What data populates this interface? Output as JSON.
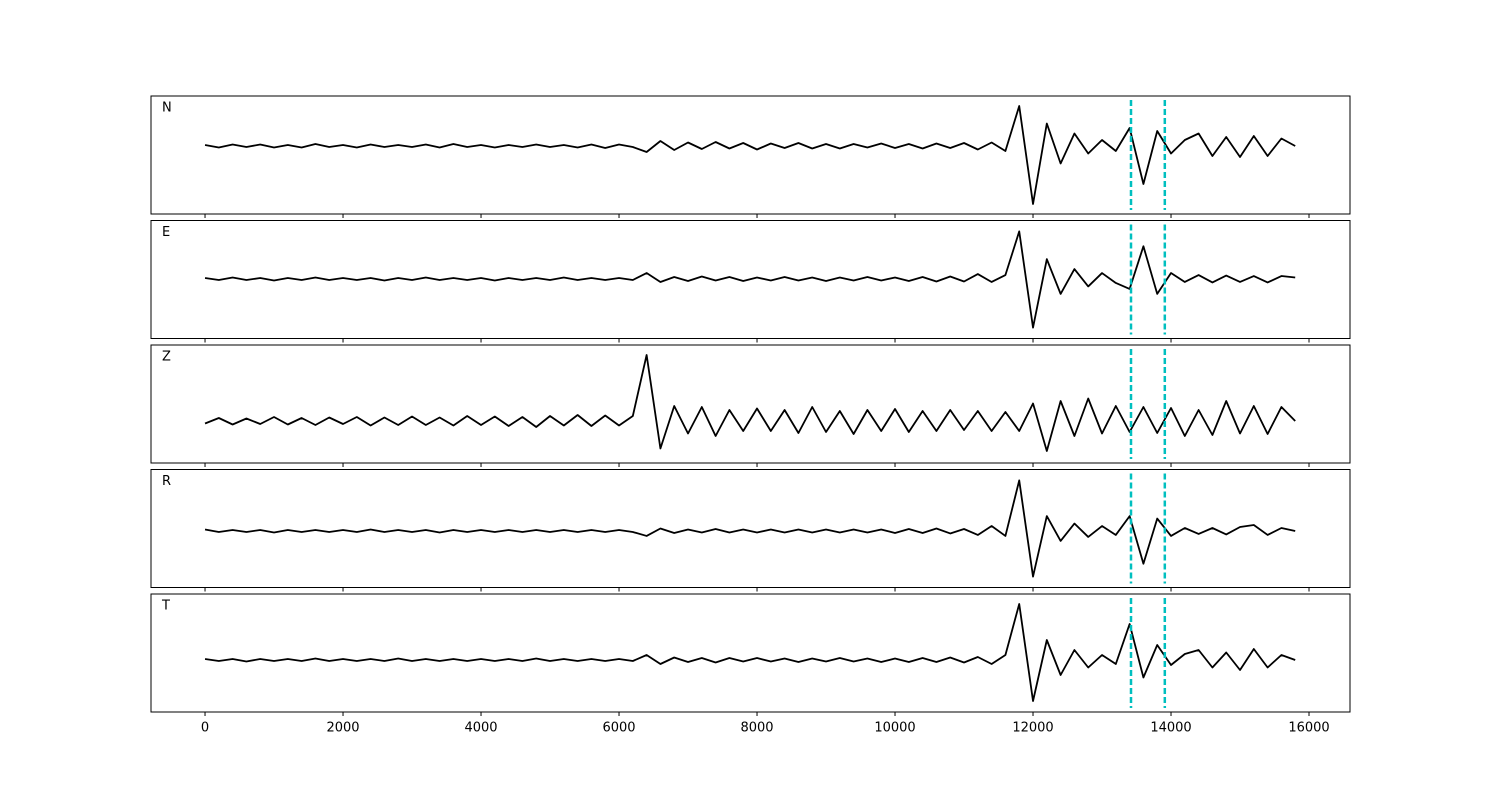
{
  "chart_data": {
    "type": "line",
    "subplots": true,
    "x": [
      0,
      200,
      400,
      600,
      800,
      1000,
      1200,
      1400,
      1600,
      1800,
      2000,
      2200,
      2400,
      2600,
      2800,
      3000,
      3200,
      3400,
      3600,
      3800,
      4000,
      4200,
      4400,
      4600,
      4800,
      5000,
      5200,
      5400,
      5600,
      5800,
      6000,
      6200,
      6400,
      6600,
      6800,
      7000,
      7200,
      7400,
      7600,
      7800,
      8000,
      8200,
      8400,
      8600,
      8800,
      9000,
      9200,
      9400,
      9600,
      9800,
      10000,
      10200,
      10400,
      10600,
      10800,
      11000,
      11200,
      11400,
      11600,
      11800,
      12000,
      12200,
      12400,
      12600,
      12800,
      13000,
      13200,
      13400,
      13600,
      13800,
      14000,
      14200,
      14400,
      14600,
      14800,
      15000,
      15200,
      15400,
      15600,
      15800
    ],
    "xlim": [
      -783,
      16594
    ],
    "xticks": [
      0,
      2000,
      4000,
      6000,
      8000,
      10000,
      12000,
      14000,
      16000
    ],
    "series": [
      {
        "name": "N",
        "color": "#000000",
        "ylim": [
          -1.36,
          1.0
        ],
        "values": [
          0.02,
          -0.03,
          0.03,
          -0.02,
          0.03,
          -0.03,
          0.02,
          -0.03,
          0.04,
          -0.02,
          0.02,
          -0.03,
          0.03,
          -0.02,
          0.02,
          -0.02,
          0.03,
          -0.03,
          0.04,
          -0.02,
          0.02,
          -0.03,
          0.02,
          -0.02,
          0.03,
          -0.02,
          0.02,
          -0.03,
          0.03,
          -0.04,
          0.03,
          -0.02,
          -0.12,
          0.1,
          -0.08,
          0.07,
          -0.06,
          0.08,
          -0.05,
          0.06,
          -0.07,
          0.05,
          -0.04,
          0.06,
          -0.05,
          0.04,
          -0.05,
          0.04,
          -0.03,
          0.05,
          -0.04,
          0.04,
          -0.05,
          0.05,
          -0.04,
          0.06,
          -0.07,
          0.07,
          -0.1,
          0.8,
          -1.16,
          0.45,
          -0.35,
          0.25,
          -0.15,
          0.12,
          -0.1,
          0.36,
          -0.76,
          0.3,
          -0.15,
          0.12,
          0.25,
          -0.2,
          0.18,
          -0.22,
          0.2,
          -0.2,
          0.15,
          0.0
        ]
      },
      {
        "name": "E",
        "color": "#000000",
        "ylim": [
          -1.2,
          1.18
        ],
        "values": [
          0.02,
          -0.02,
          0.03,
          -0.02,
          0.02,
          -0.03,
          0.02,
          -0.02,
          0.03,
          -0.02,
          0.02,
          -0.02,
          0.02,
          -0.03,
          0.02,
          -0.02,
          0.03,
          -0.02,
          0.02,
          -0.02,
          0.02,
          -0.03,
          0.02,
          -0.02,
          0.02,
          -0.02,
          0.03,
          -0.02,
          0.02,
          -0.02,
          0.02,
          -0.02,
          0.12,
          -0.06,
          0.04,
          -0.04,
          0.05,
          -0.03,
          0.04,
          -0.04,
          0.03,
          -0.03,
          0.04,
          -0.03,
          0.03,
          -0.04,
          0.03,
          -0.03,
          0.04,
          -0.03,
          0.03,
          -0.04,
          0.04,
          -0.05,
          0.05,
          -0.05,
          0.1,
          -0.06,
          0.08,
          0.96,
          -0.98,
          0.4,
          -0.3,
          0.2,
          -0.15,
          0.12,
          -0.08,
          -0.2,
          0.66,
          -0.3,
          0.12,
          -0.06,
          0.08,
          -0.07,
          0.07,
          -0.06,
          0.06,
          -0.07,
          0.06,
          0.03
        ]
      },
      {
        "name": "Z",
        "color": "#000000",
        "ylim": [
          -0.84,
          1.52
        ],
        "values": [
          -0.05,
          0.06,
          -0.07,
          0.05,
          -0.06,
          0.08,
          -0.07,
          0.06,
          -0.08,
          0.07,
          -0.06,
          0.08,
          -0.09,
          0.07,
          -0.08,
          0.09,
          -0.08,
          0.07,
          -0.09,
          0.1,
          -0.08,
          0.09,
          -0.1,
          0.08,
          -0.12,
          0.1,
          -0.09,
          0.12,
          -0.1,
          0.11,
          -0.09,
          0.1,
          1.32,
          -0.55,
          0.3,
          -0.25,
          0.28,
          -0.3,
          0.22,
          -0.2,
          0.25,
          -0.2,
          0.22,
          -0.24,
          0.28,
          -0.22,
          0.2,
          -0.26,
          0.22,
          -0.2,
          0.24,
          -0.22,
          0.2,
          -0.2,
          0.22,
          -0.18,
          0.2,
          -0.2,
          0.18,
          -0.2,
          0.35,
          -0.6,
          0.4,
          -0.3,
          0.45,
          -0.25,
          0.3,
          -0.22,
          0.28,
          -0.24,
          0.26,
          -0.3,
          0.22,
          -0.28,
          0.4,
          -0.25,
          0.3,
          -0.26,
          0.28,
          0.0
        ]
      },
      {
        "name": "R",
        "color": "#000000",
        "ylim": [
          -1.14,
          1.24
        ],
        "values": [
          0.03,
          -0.02,
          0.02,
          -0.02,
          0.02,
          -0.03,
          0.02,
          -0.02,
          0.02,
          -0.02,
          0.02,
          -0.02,
          0.03,
          -0.02,
          0.02,
          -0.02,
          0.02,
          -0.03,
          0.02,
          -0.02,
          0.02,
          -0.02,
          0.02,
          -0.02,
          0.02,
          -0.02,
          0.02,
          -0.02,
          0.02,
          -0.02,
          0.02,
          -0.02,
          -0.1,
          0.05,
          -0.04,
          0.03,
          -0.03,
          0.04,
          -0.03,
          0.03,
          -0.03,
          0.03,
          -0.03,
          0.03,
          -0.03,
          0.03,
          -0.03,
          0.03,
          -0.03,
          0.03,
          -0.04,
          0.04,
          -0.04,
          0.05,
          -0.05,
          0.04,
          -0.08,
          0.1,
          -0.1,
          1.02,
          -0.92,
          0.3,
          -0.2,
          0.15,
          -0.12,
          0.1,
          -0.08,
          0.3,
          -0.66,
          0.25,
          -0.1,
          0.06,
          -0.06,
          0.06,
          -0.07,
          0.08,
          0.12,
          -0.08,
          0.06,
          0.0
        ]
      },
      {
        "name": "T",
        "color": "#000000",
        "ylim": [
          -1.04,
          1.32
        ],
        "values": [
          0.02,
          -0.02,
          0.02,
          -0.03,
          0.02,
          -0.02,
          0.02,
          -0.02,
          0.03,
          -0.02,
          0.02,
          -0.02,
          0.02,
          -0.02,
          0.03,
          -0.02,
          0.02,
          -0.02,
          0.02,
          -0.02,
          0.02,
          -0.02,
          0.02,
          -0.02,
          0.03,
          -0.02,
          0.02,
          -0.02,
          0.02,
          -0.02,
          0.02,
          -0.02,
          0.1,
          -0.08,
          0.05,
          -0.04,
          0.04,
          -0.05,
          0.04,
          -0.03,
          0.04,
          -0.03,
          0.03,
          -0.04,
          0.03,
          -0.03,
          0.04,
          -0.03,
          0.03,
          -0.04,
          0.03,
          -0.04,
          0.04,
          -0.04,
          0.05,
          -0.05,
          0.06,
          -0.08,
          0.1,
          1.12,
          -0.82,
          0.4,
          -0.3,
          0.2,
          -0.15,
          0.1,
          -0.08,
          0.72,
          -0.35,
          0.3,
          -0.1,
          0.12,
          0.2,
          -0.15,
          0.15,
          -0.2,
          0.22,
          -0.15,
          0.1,
          0.0
        ]
      }
    ],
    "vlines": {
      "values": [
        13420,
        13910
      ],
      "color": "#00bfbf",
      "style": "dashed"
    }
  }
}
